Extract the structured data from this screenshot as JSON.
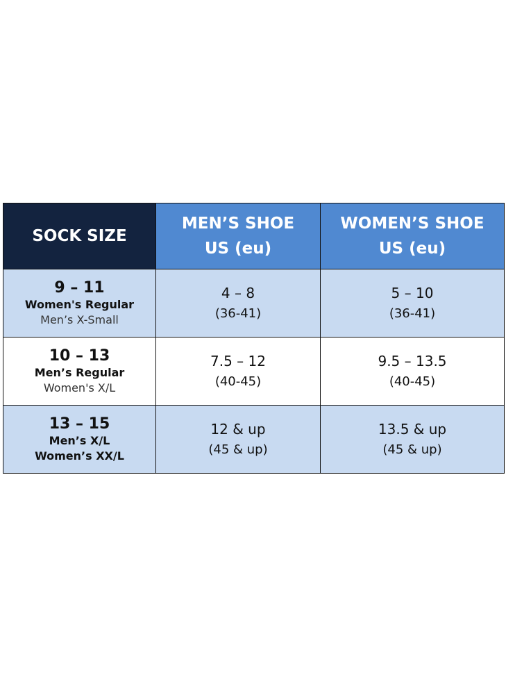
{
  "header": {
    "sock_size": "SOCK SIZE",
    "mens_shoe": [
      "MEN’S SHOE",
      "US (eu)"
    ],
    "womens_shoe": [
      "WOMEN’S SHOE",
      "US (eu)"
    ]
  },
  "colors": {
    "header_dark": "#13233f",
    "header_blue": "#5089d1",
    "row_alt": "#c8daf1"
  },
  "rows": [
    {
      "sock": "9 – 11",
      "fit_bold": "Women's Regular",
      "fit_light": "Men’s X-Small",
      "mens_us": "4 – 8",
      "mens_eu": "(36-41)",
      "womens_us": "5 – 10",
      "womens_eu": "(36-41)"
    },
    {
      "sock": "10 – 13",
      "fit_bold": "Men’s Regular",
      "fit_light": "Women's X/L",
      "mens_us": "7.5 – 12",
      "mens_eu": "(40-45)",
      "womens_us": "9.5 – 13.5",
      "womens_eu": "(40-45)"
    },
    {
      "sock": "13 – 15",
      "fit_bold": "Men’s X/L",
      "fit_bold2": "Women’s XX/L",
      "mens_us": "12 & up",
      "mens_eu": "(45 & up)",
      "womens_us": "13.5 & up",
      "womens_eu": "(45 & up)"
    }
  ]
}
